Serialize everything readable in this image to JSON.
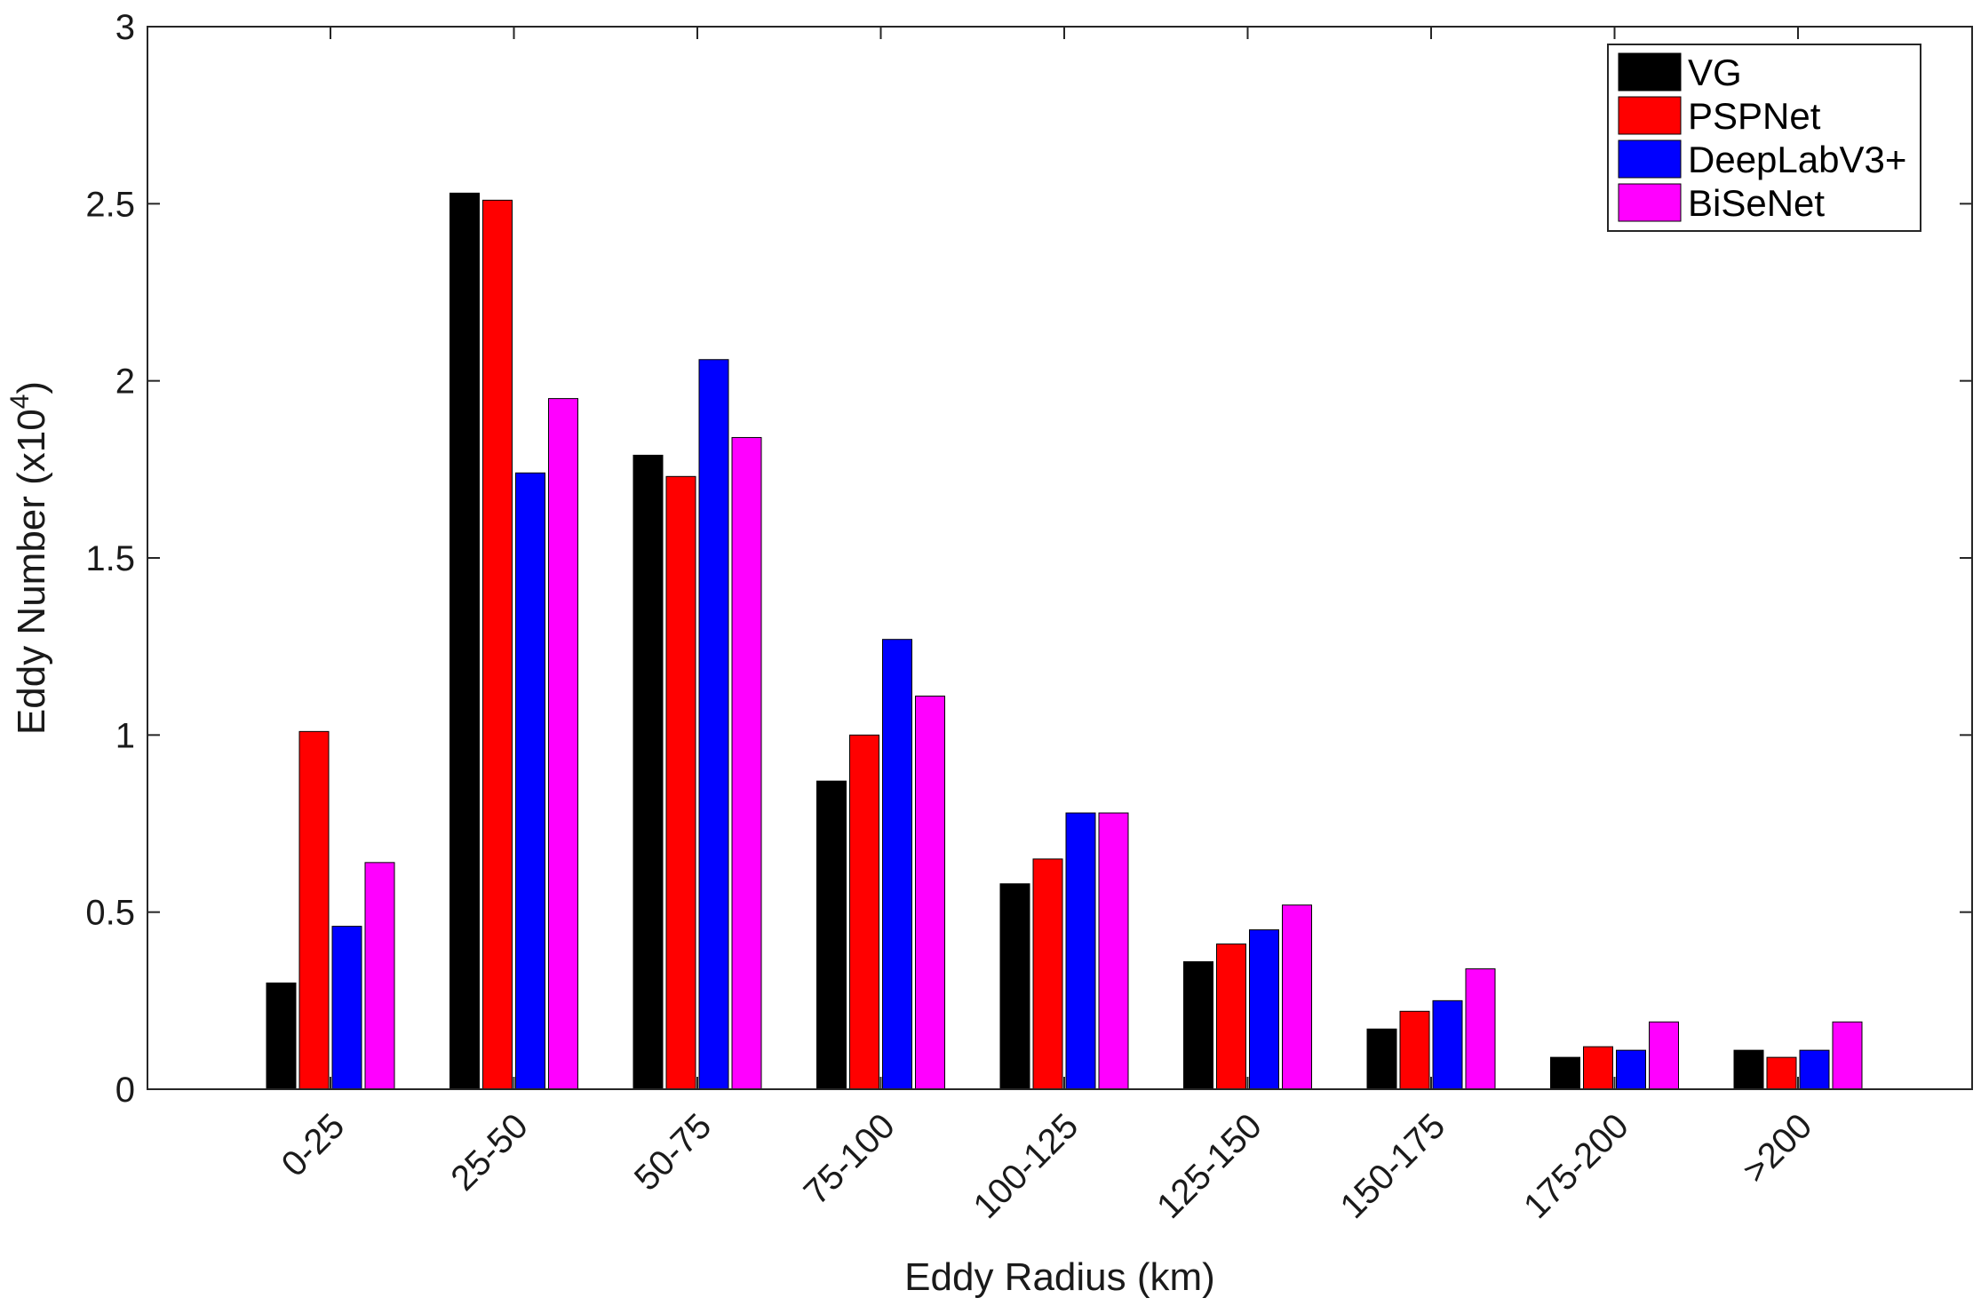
{
  "chart_data": {
    "type": "bar",
    "title": "",
    "xlabel": "Eddy Radius (km)",
    "ylabel_main": "Eddy Number (x10",
    "ylabel_exp": "4",
    "ylabel_close": ")",
    "ylim": [
      0,
      3
    ],
    "yticks": [
      "0",
      "0.5",
      "1",
      "1.5",
      "2",
      "2.5",
      "3"
    ],
    "grid": false,
    "legend_position": "top-right",
    "categories": [
      "0-25",
      "25-50",
      "50-75",
      "75-100",
      "100-125",
      "125-150",
      "150-175",
      "175-200",
      ">200"
    ],
    "series": [
      {
        "name": "VG",
        "color": "#000000",
        "values": [
          0.3,
          2.53,
          1.79,
          0.87,
          0.58,
          0.36,
          0.17,
          0.09,
          0.11
        ]
      },
      {
        "name": "PSPNet",
        "color": "#ff0000",
        "values": [
          1.01,
          2.51,
          1.73,
          1.0,
          0.65,
          0.41,
          0.22,
          0.12,
          0.09
        ]
      },
      {
        "name": "DeepLabV3+",
        "color": "#0000ff",
        "values": [
          0.46,
          1.74,
          2.06,
          1.27,
          0.78,
          0.45,
          0.25,
          0.11,
          0.11
        ]
      },
      {
        "name": "BiSeNet",
        "color": "#ff00ff",
        "values": [
          0.64,
          1.95,
          1.84,
          1.11,
          0.78,
          0.52,
          0.34,
          0.19,
          0.19
        ]
      }
    ]
  }
}
